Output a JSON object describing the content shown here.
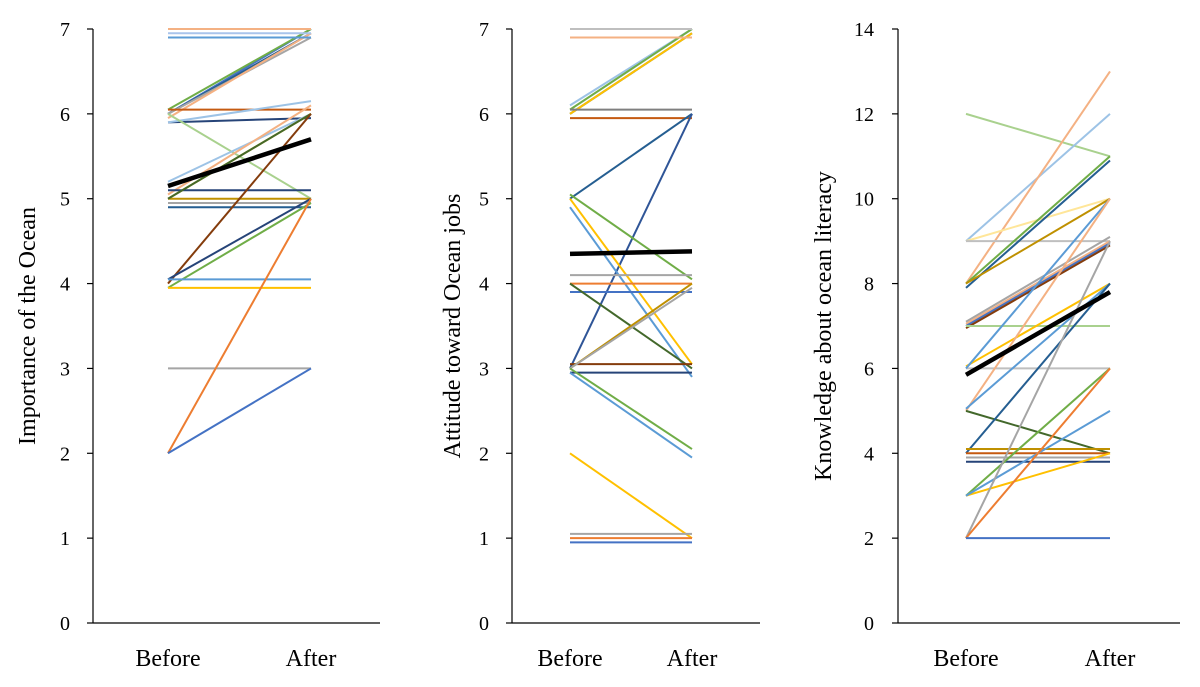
{
  "chart_data": [
    {
      "type": "line",
      "categories": [
        "Before",
        "After"
      ],
      "ylabel": "Importance of the Ocean",
      "ylim": [
        0,
        7
      ],
      "yticks": [
        "0",
        "1",
        "2",
        "3",
        "4",
        "5",
        "6",
        "7"
      ],
      "mean": {
        "name": "Mean",
        "values": [
          5.15,
          5.7
        ],
        "color": "#000000"
      },
      "series": [
        {
          "values": [
            6.0,
            7.0
          ],
          "color": "#4472C4"
        },
        {
          "values": [
            6.05,
            7.0
          ],
          "color": "#70AD47"
        },
        {
          "values": [
            6.0,
            6.95
          ],
          "color": "#255E91"
        },
        {
          "values": [
            6.0,
            6.9
          ],
          "color": "#A5A5A5"
        },
        {
          "values": [
            5.95,
            6.95
          ],
          "color": "#F4B183"
        },
        {
          "values": [
            7.0,
            7.0
          ],
          "color": "#F4B183"
        },
        {
          "values": [
            6.95,
            6.95
          ],
          "color": "#A9C4EB"
        },
        {
          "values": [
            6.9,
            6.9
          ],
          "color": "#5B9BD5"
        },
        {
          "values": [
            6.05,
            6.05
          ],
          "color": "#C55A11"
        },
        {
          "values": [
            5.9,
            5.95
          ],
          "color": "#264478"
        },
        {
          "values": [
            5.9,
            6.15
          ],
          "color": "#9DC3E6"
        },
        {
          "values": [
            6.0,
            5.0
          ],
          "color": "#A9D18E"
        },
        {
          "values": [
            5.2,
            6.0
          ],
          "color": "#9DC3E6"
        },
        {
          "values": [
            5.05,
            6.1
          ],
          "color": "#F4B183"
        },
        {
          "values": [
            5.0,
            6.0
          ],
          "color": "#FFC000"
        },
        {
          "values": [
            5.1,
            5.1
          ],
          "color": "#264478"
        },
        {
          "values": [
            5.0,
            5.0
          ],
          "color": "#BF9000"
        },
        {
          "values": [
            4.95,
            4.95
          ],
          "color": "#A5A5A5"
        },
        {
          "values": [
            4.9,
            4.9
          ],
          "color": "#255E91"
        },
        {
          "values": [
            5.0,
            6.0
          ],
          "color": "#43682B"
        },
        {
          "values": [
            4.0,
            6.0
          ],
          "color": "#843C0C"
        },
        {
          "values": [
            4.05,
            5.0
          ],
          "color": "#264478"
        },
        {
          "values": [
            3.95,
            4.95
          ],
          "color": "#70AD47"
        },
        {
          "values": [
            4.05,
            4.05
          ],
          "color": "#5B9BD5"
        },
        {
          "values": [
            3.95,
            3.95
          ],
          "color": "#FFC000"
        },
        {
          "values": [
            3.0,
            3.0
          ],
          "color": "#A5A5A5"
        },
        {
          "values": [
            2.0,
            5.0
          ],
          "color": "#ED7D31"
        },
        {
          "values": [
            2.0,
            3.0
          ],
          "color": "#4472C4"
        }
      ]
    },
    {
      "type": "line",
      "categories": [
        "Before",
        "After"
      ],
      "ylabel": "Attitude toward Ocean jobs",
      "ylim": [
        0,
        7
      ],
      "yticks": [
        "0",
        "1",
        "2",
        "3",
        "4",
        "5",
        "6",
        "7"
      ],
      "mean": {
        "name": "Mean",
        "values": [
          4.35,
          4.38
        ],
        "color": "#000000"
      },
      "series": [
        {
          "values": [
            6.1,
            7.0
          ],
          "color": "#9DC3E6"
        },
        {
          "values": [
            6.05,
            7.0
          ],
          "color": "#70AD47"
        },
        {
          "values": [
            6.0,
            6.95
          ],
          "color": "#255E91"
        },
        {
          "values": [
            6.0,
            6.95
          ],
          "color": "#FFC000"
        },
        {
          "values": [
            7.0,
            7.0
          ],
          "color": "#BFBFBF"
        },
        {
          "values": [
            6.9,
            6.9
          ],
          "color": "#F4B183"
        },
        {
          "values": [
            6.05,
            6.05
          ],
          "color": "#7F7F7F"
        },
        {
          "values": [
            5.95,
            5.95
          ],
          "color": "#C55A11"
        },
        {
          "values": [
            5.0,
            6.0
          ],
          "color": "#255E91"
        },
        {
          "values": [
            3.0,
            6.0
          ],
          "color": "#2F5597"
        },
        {
          "values": [
            5.05,
            4.05
          ],
          "color": "#70AD47"
        },
        {
          "values": [
            5.0,
            3.05
          ],
          "color": "#FFC000"
        },
        {
          "values": [
            4.9,
            2.9
          ],
          "color": "#5B9BD5"
        },
        {
          "values": [
            4.1,
            4.1
          ],
          "color": "#A5A5A5"
        },
        {
          "values": [
            4.0,
            4.0
          ],
          "color": "#ED7D31"
        },
        {
          "values": [
            3.9,
            3.9
          ],
          "color": "#4472C4"
        },
        {
          "values": [
            4.0,
            3.0
          ],
          "color": "#43682B"
        },
        {
          "values": [
            3.05,
            3.05
          ],
          "color": "#843C0C"
        },
        {
          "values": [
            3.0,
            4.0
          ],
          "color": "#BF9000"
        },
        {
          "values": [
            3.0,
            3.95
          ],
          "color": "#A5A5A5"
        },
        {
          "values": [
            2.95,
            2.95
          ],
          "color": "#264478"
        },
        {
          "values": [
            3.0,
            2.05
          ],
          "color": "#70AD47"
        },
        {
          "values": [
            2.95,
            1.95
          ],
          "color": "#5B9BD5"
        },
        {
          "values": [
            2.0,
            1.0
          ],
          "color": "#FFC000"
        },
        {
          "values": [
            1.05,
            1.05
          ],
          "color": "#A5A5A5"
        },
        {
          "values": [
            1.0,
            1.0
          ],
          "color": "#ED7D31"
        },
        {
          "values": [
            0.95,
            0.95
          ],
          "color": "#4472C4"
        }
      ]
    },
    {
      "type": "line",
      "categories": [
        "Before",
        "After"
      ],
      "ylabel": "Knowledge about ocean literacy",
      "ylim": [
        0,
        14
      ],
      "yticks": [
        "0",
        "2",
        "4",
        "6",
        "8",
        "10",
        "12",
        "14"
      ],
      "mean": {
        "name": "Mean",
        "values": [
          5.85,
          7.8
        ],
        "color": "#000000"
      },
      "series": [
        {
          "values": [
            12.0,
            11.0
          ],
          "color": "#A9D18E"
        },
        {
          "values": [
            9.0,
            12.0
          ],
          "color": "#9DC3E6"
        },
        {
          "values": [
            8.0,
            13.0
          ],
          "color": "#F4B183"
        },
        {
          "values": [
            9.0,
            10.0
          ],
          "color": "#FFE699"
        },
        {
          "values": [
            9.0,
            9.0
          ],
          "color": "#BFBFBF"
        },
        {
          "values": [
            8.0,
            11.0
          ],
          "color": "#70AD47"
        },
        {
          "values": [
            7.9,
            10.9
          ],
          "color": "#255E91"
        },
        {
          "values": [
            8.0,
            10.0
          ],
          "color": "#BF9000"
        },
        {
          "values": [
            7.1,
            9.1
          ],
          "color": "#A5A5A5"
        },
        {
          "values": [
            7.05,
            9.0
          ],
          "color": "#F4B183"
        },
        {
          "values": [
            7.0,
            8.95
          ],
          "color": "#4472C4"
        },
        {
          "values": [
            6.95,
            8.9
          ],
          "color": "#843C0C"
        },
        {
          "values": [
            7.0,
            7.0
          ],
          "color": "#A9D18E"
        },
        {
          "values": [
            6.05,
            8.0
          ],
          "color": "#FFC000"
        },
        {
          "values": [
            6.0,
            6.0
          ],
          "color": "#BFBFBF"
        },
        {
          "values": [
            6.0,
            10.0
          ],
          "color": "#5B9BD5"
        },
        {
          "values": [
            5.0,
            10.0
          ],
          "color": "#F4B183"
        },
        {
          "values": [
            5.05,
            8.0
          ],
          "color": "#5B9BD5"
        },
        {
          "values": [
            5.0,
            4.0
          ],
          "color": "#43682B"
        },
        {
          "values": [
            4.0,
            8.0
          ],
          "color": "#255E91"
        },
        {
          "values": [
            4.1,
            4.1
          ],
          "color": "#BF9000"
        },
        {
          "values": [
            4.0,
            4.0
          ],
          "color": "#C55A11"
        },
        {
          "values": [
            3.9,
            3.9
          ],
          "color": "#A5A5A5"
        },
        {
          "values": [
            3.8,
            3.8
          ],
          "color": "#264478"
        },
        {
          "values": [
            3.0,
            6.0
          ],
          "color": "#70AD47"
        },
        {
          "values": [
            3.0,
            4.0
          ],
          "color": "#FFC000"
        },
        {
          "values": [
            3.0,
            5.0
          ],
          "color": "#5B9BD5"
        },
        {
          "values": [
            2.0,
            9.0
          ],
          "color": "#A5A5A5"
        },
        {
          "values": [
            2.0,
            6.0
          ],
          "color": "#ED7D31"
        },
        {
          "values": [
            2.0,
            2.0
          ],
          "color": "#4472C4"
        }
      ]
    }
  ]
}
